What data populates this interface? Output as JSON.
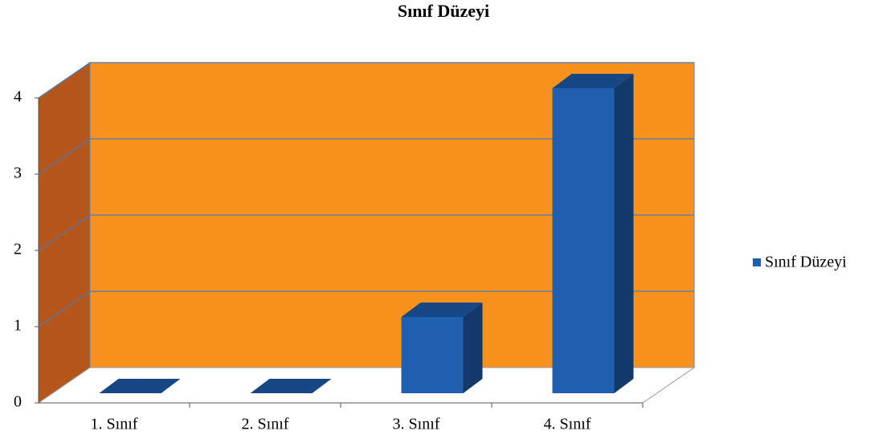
{
  "chart_data": {
    "type": "bar3d",
    "title": "Sınıf Düzeyi",
    "categories": [
      "1. Sınıf",
      "2. Sınıf",
      "3. Sınıf",
      "4. Sınıf"
    ],
    "series": [
      {
        "name": "Sınıf Düzeyi",
        "color": "#1f5fb0",
        "values": [
          0,
          0,
          1,
          4
        ]
      }
    ],
    "ylim": [
      0,
      4
    ],
    "yticks": [
      0,
      1,
      2,
      3,
      4
    ],
    "grid": true,
    "legend": "right"
  }
}
